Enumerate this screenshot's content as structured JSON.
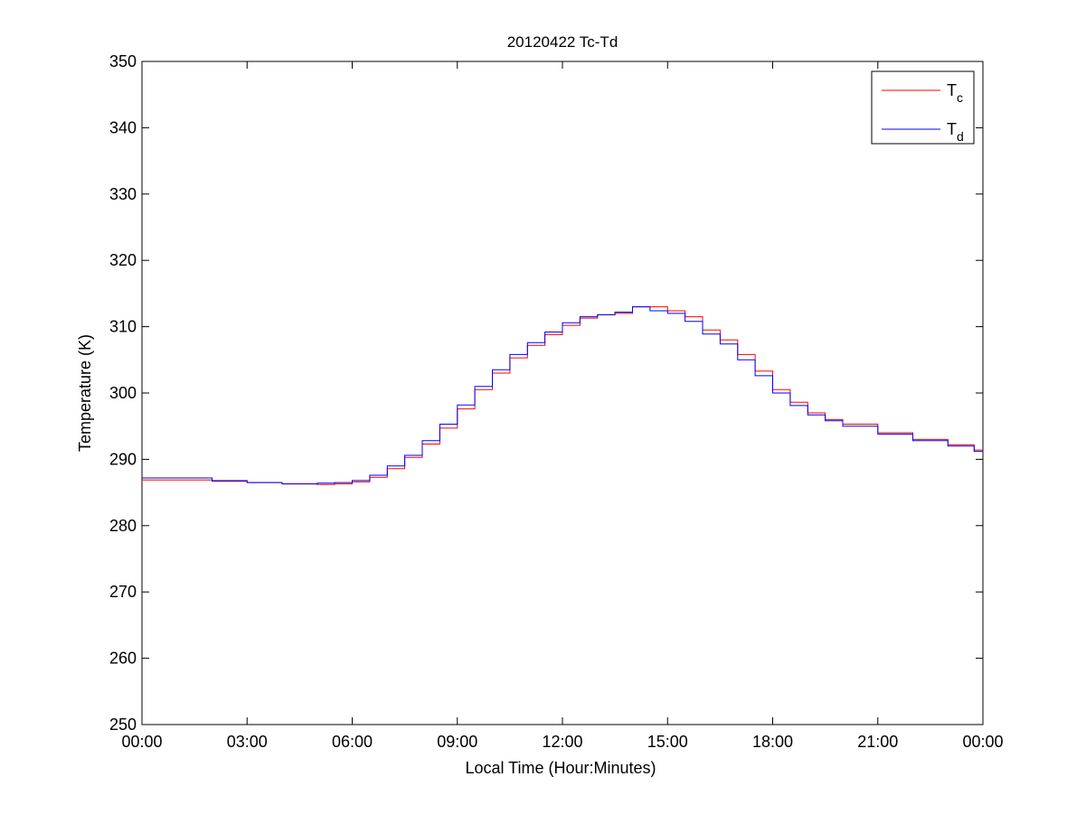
{
  "chart_data": {
    "type": "line",
    "title": "20120422 Tc-Td",
    "xlabel": "Local Time (Hour:Minutes)",
    "ylabel": "Temperature (K)",
    "xlim": [
      "00:00",
      "24:00"
    ],
    "ylim": [
      250,
      350
    ],
    "xticks": [
      "00:00",
      "03:00",
      "06:00",
      "09:00",
      "12:00",
      "15:00",
      "18:00",
      "21:00",
      "00:00"
    ],
    "yticks": [
      250,
      260,
      270,
      280,
      290,
      300,
      310,
      320,
      330,
      340,
      350
    ],
    "grid": false,
    "legend_position": "top-right",
    "series": [
      {
        "name": "Tc",
        "name_base": "T",
        "name_sub": "c",
        "color": "#ff0000",
        "x": [
          "00:00",
          "01:00",
          "02:00",
          "03:00",
          "04:00",
          "05:00",
          "05:30",
          "06:00",
          "06:30",
          "07:00",
          "07:30",
          "08:00",
          "08:30",
          "09:00",
          "09:30",
          "10:00",
          "10:30",
          "11:00",
          "11:30",
          "12:00",
          "12:30",
          "13:00",
          "13:30",
          "14:00",
          "14:30",
          "15:00",
          "15:30",
          "16:00",
          "16:30",
          "17:00",
          "17:30",
          "18:00",
          "18:30",
          "19:00",
          "19:30",
          "20:00",
          "21:00",
          "22:00",
          "23:00",
          "23:45"
        ],
        "y": [
          286.9,
          286.9,
          286.8,
          286.5,
          286.3,
          286.2,
          286.3,
          286.6,
          287.3,
          288.6,
          290.3,
          292.3,
          294.7,
          297.6,
          300.5,
          303.0,
          305.3,
          307.2,
          308.8,
          310.2,
          311.3,
          311.8,
          312.0,
          313.0,
          313.0,
          312.4,
          311.5,
          309.5,
          308.0,
          305.8,
          303.3,
          300.5,
          298.6,
          297.0,
          296.0,
          295.3,
          294.0,
          293.0,
          292.2,
          291.4
        ]
      },
      {
        "name": "Td",
        "name_base": "T",
        "name_sub": "d",
        "color": "#0000ff",
        "x": [
          "00:00",
          "01:00",
          "02:00",
          "03:00",
          "04:00",
          "05:00",
          "05:30",
          "06:00",
          "06:30",
          "07:00",
          "07:30",
          "08:00",
          "08:30",
          "09:00",
          "09:30",
          "10:00",
          "10:30",
          "11:00",
          "11:30",
          "12:00",
          "12:30",
          "13:00",
          "13:30",
          "14:00",
          "14:30",
          "15:00",
          "15:30",
          "16:00",
          "16:30",
          "17:00",
          "17:30",
          "18:00",
          "18:30",
          "19:00",
          "19:30",
          "20:00",
          "21:00",
          "22:00",
          "23:00",
          "23:45"
        ],
        "y": [
          287.2,
          287.2,
          286.7,
          286.5,
          286.3,
          286.4,
          286.5,
          286.8,
          287.6,
          289.0,
          290.6,
          292.8,
          295.3,
          298.2,
          301.0,
          303.5,
          305.8,
          307.6,
          309.2,
          310.6,
          311.5,
          311.8,
          312.2,
          313.0,
          312.4,
          312.0,
          310.8,
          308.9,
          307.4,
          305.0,
          302.6,
          300.0,
          298.1,
          296.7,
          295.8,
          295.0,
          293.8,
          292.8,
          292.0,
          291.2
        ]
      }
    ]
  }
}
